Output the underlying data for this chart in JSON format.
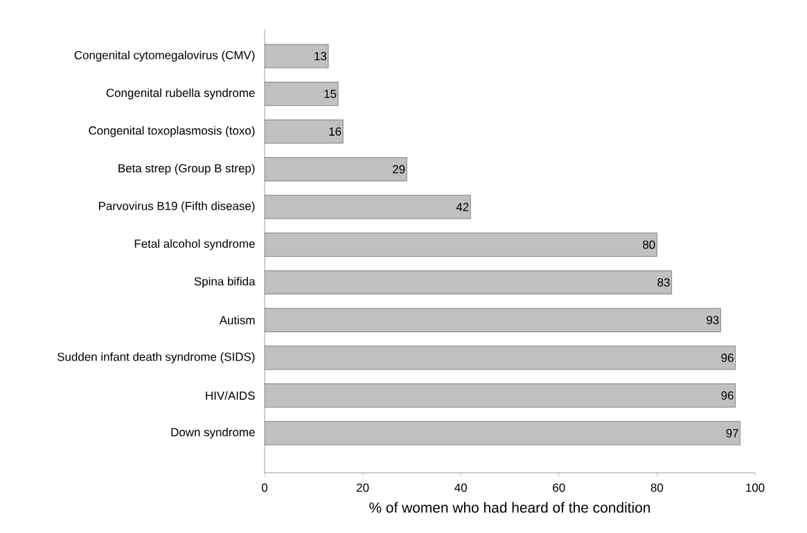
{
  "chart_data": {
    "type": "bar",
    "orientation": "horizontal",
    "categories": [
      "Congenital cytomegalovirus (CMV)",
      "Congenital rubella syndrome",
      "Congenital toxoplasmosis (toxo)",
      "Beta strep (Group B strep)",
      "Parvovirus B19 (Fifth disease)",
      "Fetal alcohol syndrome",
      "Spina bifida",
      "Autism",
      "Sudden infant death syndrome (SIDS)",
      "HIV/AIDS",
      "Down syndrome"
    ],
    "values": [
      13,
      15,
      16,
      29,
      42,
      80,
      83,
      93,
      96,
      96,
      97
    ],
    "color": "#c0c0c0",
    "xlabel": "% of women who had heard of the condition",
    "xlim": [
      0,
      100
    ],
    "xticks": [
      0,
      20,
      40,
      60,
      80,
      100
    ],
    "data_labels": true
  }
}
